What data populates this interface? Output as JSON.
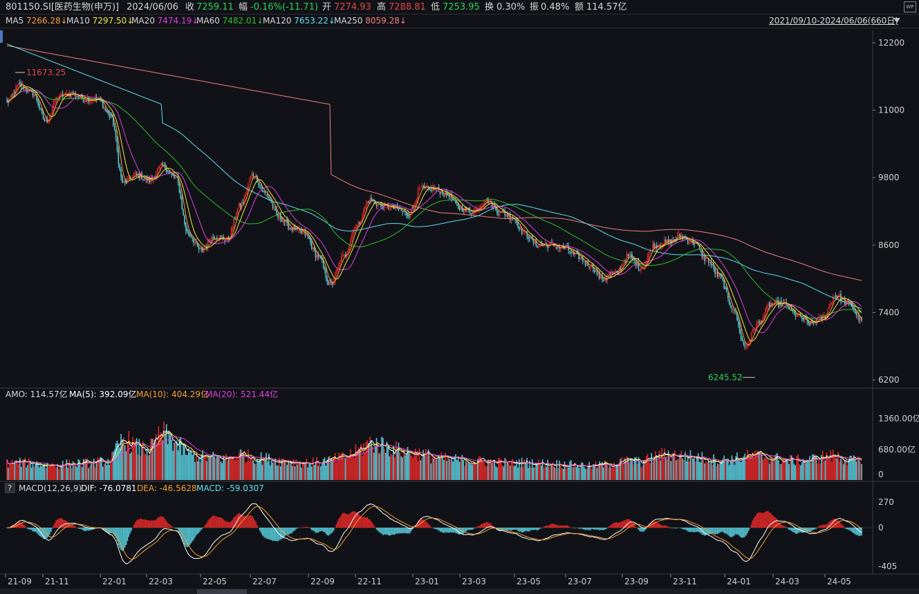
{
  "header": {
    "code": "801150.SI[医药生物(申万)]",
    "date": "2024/06/06",
    "close_label": "收",
    "close": "7259.11",
    "chg_label": "幅",
    "chg": "-0.16%(-11.71)",
    "open_label": "开",
    "open": "7274.93",
    "high_label": "高",
    "high": "7288.81",
    "low_label": "低",
    "low": "7253.95",
    "turn_label": "换",
    "turn": "0.30%",
    "amp_label": "振",
    "amp": "0.48%",
    "amt_label": "额",
    "amt": "114.57亿",
    "wp_icon": "WP"
  },
  "ma_legend": [
    {
      "label": "MA5",
      "value": "7266.28↓",
      "color": "#ff9c3a"
    },
    {
      "label": "MA10",
      "value": "7297.50↓",
      "color": "#f5e64a"
    },
    {
      "label": "MA20",
      "value": "7474.19↓",
      "color": "#e040e0"
    },
    {
      "label": "MA60",
      "value": "7482.01↓",
      "color": "#30c030"
    },
    {
      "label": "MA120",
      "value": "7653.22↓",
      "color": "#60e0f0"
    },
    {
      "label": "MA250",
      "value": "8059.28↓",
      "color": "#f08080"
    }
  ],
  "range_text": "2021/09/10-2024/06/06(660日)",
  "amo_legend": {
    "amo": "AMO: 114.57亿",
    "ma5": "MA(5): 392.09亿",
    "ma10": "MA(10): 404.29亿",
    "ma20": "MA(20): 521.44亿"
  },
  "macd_legend": {
    "help_icon": "?",
    "title": "MACD(12,26,9)",
    "dif": "DIF: -76.0781",
    "dea": "DEA: -46.5628",
    "macd": "MACD: -59.0307"
  },
  "colors": {
    "up": "#e02828",
    "down": "#56c8d8",
    "grid": "#2a2c33",
    "text": "#cfcfcf"
  },
  "chart_data": [
    {
      "type": "candlestick",
      "title": "801150.SI[医药生物(申万)]",
      "y_ticks": [
        12200,
        11000,
        9800,
        8600,
        7400,
        6200
      ],
      "ylim": [
        6200,
        12200
      ],
      "x_ticks": [
        "21-09",
        "21-11",
        "22-01",
        "22-03",
        "22-05",
        "22-07",
        "22-09",
        "22-11",
        "23-01",
        "23-03",
        "23-05",
        "23-07",
        "23-09",
        "23-11",
        "24-01",
        "24-03",
        "24-05"
      ],
      "annotations": [
        {
          "text": "11673.25",
          "kind": "max"
        },
        {
          "text": "6245.52",
          "kind": "min"
        }
      ],
      "close_anchors": [
        [
          "21-09",
          11150
        ],
        [
          "21-09b",
          11450
        ],
        [
          "21-10",
          11300
        ],
        [
          "21-10b",
          10800
        ],
        [
          "21-11",
          11250
        ],
        [
          "21-11b",
          11300
        ],
        [
          "21-12",
          11200
        ],
        [
          "21-12b",
          11200
        ],
        [
          "22-01",
          10900
        ],
        [
          "22-01b",
          9700
        ],
        [
          "22-02",
          9850
        ],
        [
          "22-02b",
          9750
        ],
        [
          "22-03",
          10000
        ],
        [
          "22-03b",
          9800
        ],
        [
          "22-04",
          8800
        ],
        [
          "22-04b",
          8500
        ],
        [
          "22-05",
          8750
        ],
        [
          "22-05b",
          8700
        ],
        [
          "22-06",
          9300
        ],
        [
          "22-06b",
          9850
        ],
        [
          "22-07",
          9500
        ],
        [
          "22-07b",
          9100
        ],
        [
          "22-08",
          8900
        ],
        [
          "22-08b",
          8800
        ],
        [
          "22-09",
          8400
        ],
        [
          "22-09b",
          7900
        ],
        [
          "22-10",
          8400
        ],
        [
          "22-10b",
          8950
        ],
        [
          "22-11",
          9400
        ],
        [
          "22-11b",
          9300
        ],
        [
          "22-12",
          9250
        ],
        [
          "22-12b",
          9150
        ],
        [
          "23-01",
          9600
        ],
        [
          "23-01b",
          9600
        ],
        [
          "23-02",
          9500
        ],
        [
          "23-02b",
          9250
        ],
        [
          "23-03",
          9200
        ],
        [
          "23-03b",
          9400
        ],
        [
          "23-04",
          9200
        ],
        [
          "23-04b",
          9100
        ],
        [
          "23-05",
          8800
        ],
        [
          "23-05b",
          8600
        ],
        [
          "23-06",
          8600
        ],
        [
          "23-06b",
          8550
        ],
        [
          "23-07",
          8400
        ],
        [
          "23-07b",
          8250
        ],
        [
          "23-08",
          8000
        ],
        [
          "23-08b",
          8100
        ],
        [
          "23-09",
          8400
        ],
        [
          "23-09b",
          8200
        ],
        [
          "23-10",
          8600
        ],
        [
          "23-10b",
          8650
        ],
        [
          "23-11",
          8750
        ],
        [
          "23-11b",
          8650
        ],
        [
          "23-12",
          8350
        ],
        [
          "23-12b",
          8050
        ],
        [
          "24-01",
          7500
        ],
        [
          "24-01b",
          6800
        ],
        [
          "24-02",
          7200
        ],
        [
          "24-02b",
          7550
        ],
        [
          "24-03",
          7550
        ],
        [
          "24-03b",
          7350
        ],
        [
          "24-04",
          7200
        ],
        [
          "24-04b",
          7300
        ],
        [
          "24-05",
          7700
        ],
        [
          "24-05b",
          7550
        ],
        [
          "24-06",
          7259
        ]
      ]
    },
    {
      "type": "bar",
      "title": "AMO",
      "y_ticks": [
        "1360.00亿",
        "680.00亿",
        "0"
      ],
      "ylim": [
        0,
        1700
      ],
      "series_names": [
        "AMO",
        "MA(5)",
        "MA(10)",
        "MA(20)"
      ],
      "amount_anchors": [
        350,
        380,
        360,
        320,
        330,
        350,
        360,
        380,
        420,
        900,
        700,
        650,
        1000,
        800,
        560,
        500,
        480,
        450,
        560,
        480,
        460,
        420,
        400,
        370,
        380,
        430,
        480,
        600,
        800,
        750,
        650,
        600,
        560,
        480,
        450,
        430,
        410,
        400,
        380,
        360,
        380,
        360,
        350,
        340,
        320,
        300,
        330,
        360,
        420,
        380,
        500,
        560,
        520,
        500,
        460,
        420,
        440,
        500,
        520,
        480,
        430,
        420,
        430,
        500,
        520,
        420,
        392
      ]
    },
    {
      "type": "bar",
      "title": "MACD(12,26,9)",
      "y_ticks": [
        270,
        0,
        -405
      ],
      "ylim": [
        -420,
        300
      ],
      "series_names": [
        "DIF",
        "DEA",
        "MACD"
      ]
    }
  ]
}
